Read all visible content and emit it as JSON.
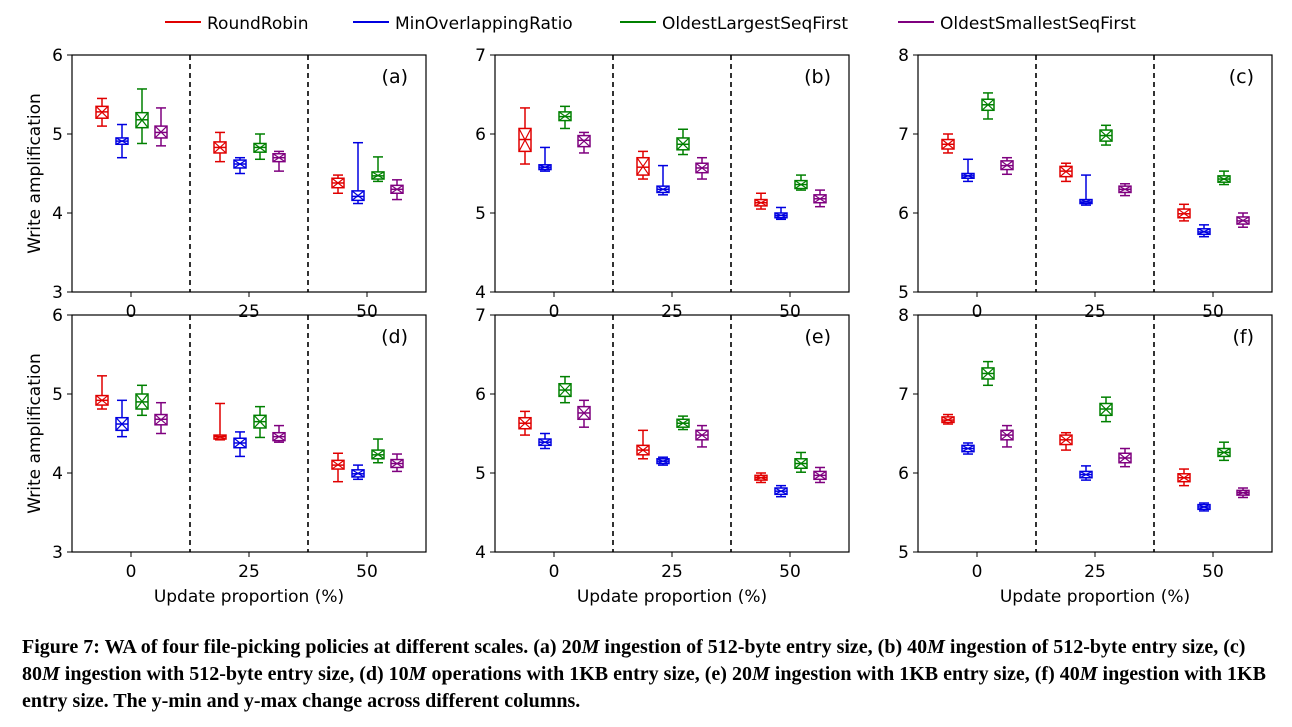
{
  "legend": [
    {
      "name": "RoundRobin",
      "color": "#e00000"
    },
    {
      "name": "MinOverlappingRatio",
      "color": "#0000e0"
    },
    {
      "name": "OldestLargestSeqFirst",
      "color": "#008000"
    },
    {
      "name": "OldestSmallestSeqFirst",
      "color": "#7f007f"
    }
  ],
  "caption": {
    "part1": "Figure 7: WA of four file-picking policies at different scales. (a) 20",
    "part2": "ingestion of 512-byte entry size, (b) 40",
    "part3": "ingestion of 512-byte entry size, (c) 80",
    "part4": "ingestion with 512-byte entry size, (d) 10",
    "part5": "operations with 1KB entry size, (e) 20",
    "part6": "ingestion with 1KB entry size, (f) 40",
    "part7": "ingestion with 1KB entry size. The y-min and y-max change across different columns.",
    "m": "M"
  },
  "chart_data": [
    {
      "type": "box",
      "panel": "(a)",
      "ylabel": "Write amplification",
      "xlabel": "",
      "ylim": [
        3,
        6
      ],
      "yticks": [
        3,
        4,
        5,
        6
      ],
      "categories": [
        "0",
        "25",
        "50"
      ],
      "series": [
        {
          "name": "RoundRobin",
          "boxes": [
            {
              "min": 5.1,
              "q1": 5.2,
              "median": 5.28,
              "q3": 5.35,
              "max": 5.45
            },
            {
              "min": 4.65,
              "q1": 4.76,
              "median": 4.83,
              "q3": 4.9,
              "max": 5.02
            },
            {
              "min": 4.25,
              "q1": 4.32,
              "median": 4.38,
              "q3": 4.44,
              "max": 4.48
            }
          ]
        },
        {
          "name": "MinOverlappingRatio",
          "boxes": [
            {
              "min": 4.7,
              "q1": 4.87,
              "median": 4.91,
              "q3": 4.95,
              "max": 5.12
            },
            {
              "min": 4.5,
              "q1": 4.57,
              "median": 4.62,
              "q3": 4.67,
              "max": 4.7
            },
            {
              "min": 4.12,
              "q1": 4.16,
              "median": 4.21,
              "q3": 4.28,
              "max": 4.89
            }
          ]
        },
        {
          "name": "OldestLargestSeqFirst",
          "boxes": [
            {
              "min": 4.88,
              "q1": 5.08,
              "median": 5.18,
              "q3": 5.27,
              "max": 5.57
            },
            {
              "min": 4.68,
              "q1": 4.77,
              "median": 4.83,
              "q3": 4.88,
              "max": 5.0
            },
            {
              "min": 4.4,
              "q1": 4.43,
              "median": 4.47,
              "q3": 4.52,
              "max": 4.71
            }
          ]
        },
        {
          "name": "OldestSmallestSeqFirst",
          "boxes": [
            {
              "min": 4.85,
              "q1": 4.95,
              "median": 5.02,
              "q3": 5.1,
              "max": 5.33
            },
            {
              "min": 4.53,
              "q1": 4.65,
              "median": 4.7,
              "q3": 4.75,
              "max": 4.78
            },
            {
              "min": 4.17,
              "q1": 4.25,
              "median": 4.3,
              "q3": 4.35,
              "max": 4.42
            }
          ]
        }
      ]
    },
    {
      "type": "box",
      "panel": "(b)",
      "ylabel": "",
      "xlabel": "",
      "ylim": [
        4,
        7
      ],
      "yticks": [
        4,
        5,
        6,
        7
      ],
      "categories": [
        "0",
        "25",
        "50"
      ],
      "series": [
        {
          "name": "RoundRobin",
          "boxes": [
            {
              "min": 5.62,
              "q1": 5.78,
              "median": 5.93,
              "q3": 6.07,
              "max": 6.33
            },
            {
              "min": 5.43,
              "q1": 5.48,
              "median": 5.58,
              "q3": 5.7,
              "max": 5.78
            },
            {
              "min": 5.05,
              "q1": 5.09,
              "median": 5.13,
              "q3": 5.17,
              "max": 5.25
            }
          ]
        },
        {
          "name": "MinOverlappingRatio",
          "boxes": [
            {
              "min": 5.53,
              "q1": 5.55,
              "median": 5.58,
              "q3": 5.61,
              "max": 5.83
            },
            {
              "min": 5.23,
              "q1": 5.26,
              "median": 5.3,
              "q3": 5.34,
              "max": 5.6
            },
            {
              "min": 4.92,
              "q1": 4.94,
              "median": 4.97,
              "q3": 5.0,
              "max": 5.07
            }
          ]
        },
        {
          "name": "OldestLargestSeqFirst",
          "boxes": [
            {
              "min": 6.07,
              "q1": 6.17,
              "median": 6.22,
              "q3": 6.28,
              "max": 6.35
            },
            {
              "min": 5.74,
              "q1": 5.8,
              "median": 5.87,
              "q3": 5.95,
              "max": 6.06
            },
            {
              "min": 5.29,
              "q1": 5.31,
              "median": 5.36,
              "q3": 5.41,
              "max": 5.48
            }
          ]
        },
        {
          "name": "OldestSmallestSeqFirst",
          "boxes": [
            {
              "min": 5.76,
              "q1": 5.84,
              "median": 5.92,
              "q3": 5.98,
              "max": 6.02
            },
            {
              "min": 5.43,
              "q1": 5.51,
              "median": 5.57,
              "q3": 5.63,
              "max": 5.7
            },
            {
              "min": 5.08,
              "q1": 5.13,
              "median": 5.18,
              "q3": 5.23,
              "max": 5.29
            }
          ]
        }
      ]
    },
    {
      "type": "box",
      "panel": "(c)",
      "ylabel": "",
      "xlabel": "",
      "ylim": [
        5,
        8
      ],
      "yticks": [
        5,
        6,
        7,
        8
      ],
      "categories": [
        "0",
        "25",
        "50"
      ],
      "series": [
        {
          "name": "RoundRobin",
          "boxes": [
            {
              "min": 6.76,
              "q1": 6.81,
              "median": 6.87,
              "q3": 6.93,
              "max": 7.0
            },
            {
              "min": 6.4,
              "q1": 6.46,
              "median": 6.53,
              "q3": 6.59,
              "max": 6.63
            },
            {
              "min": 5.9,
              "q1": 5.94,
              "median": 5.99,
              "q3": 6.05,
              "max": 6.11
            }
          ]
        },
        {
          "name": "MinOverlappingRatio",
          "boxes": [
            {
              "min": 6.4,
              "q1": 6.44,
              "median": 6.47,
              "q3": 6.5,
              "max": 6.68
            },
            {
              "min": 6.1,
              "q1": 6.12,
              "median": 6.14,
              "q3": 6.17,
              "max": 6.48
            },
            {
              "min": 5.7,
              "q1": 5.73,
              "median": 5.76,
              "q3": 5.8,
              "max": 5.85
            }
          ]
        },
        {
          "name": "OldestLargestSeqFirst",
          "boxes": [
            {
              "min": 7.19,
              "q1": 7.3,
              "median": 7.37,
              "q3": 7.44,
              "max": 7.52
            },
            {
              "min": 6.86,
              "q1": 6.91,
              "median": 6.98,
              "q3": 7.05,
              "max": 7.11
            },
            {
              "min": 6.36,
              "q1": 6.39,
              "median": 6.43,
              "q3": 6.47,
              "max": 6.53
            }
          ]
        },
        {
          "name": "OldestSmallestSeqFirst",
          "boxes": [
            {
              "min": 6.49,
              "q1": 6.55,
              "median": 6.6,
              "q3": 6.66,
              "max": 6.7
            },
            {
              "min": 6.22,
              "q1": 6.26,
              "median": 6.3,
              "q3": 6.34,
              "max": 6.37
            },
            {
              "min": 5.82,
              "q1": 5.86,
              "median": 5.9,
              "q3": 5.95,
              "max": 6.0
            }
          ]
        }
      ]
    },
    {
      "type": "box",
      "panel": "(d)",
      "ylabel": "Write amplification",
      "xlabel": "Update proportion (%)",
      "ylim": [
        3,
        6
      ],
      "yticks": [
        3,
        4,
        5,
        6
      ],
      "categories": [
        "0",
        "25",
        "50"
      ],
      "series": [
        {
          "name": "RoundRobin",
          "boxes": [
            {
              "min": 4.81,
              "q1": 4.86,
              "median": 4.92,
              "q3": 4.98,
              "max": 5.23
            },
            {
              "min": 4.42,
              "q1": 4.43,
              "median": 4.46,
              "q3": 4.48,
              "max": 4.88
            },
            {
              "min": 3.89,
              "q1": 4.05,
              "median": 4.1,
              "q3": 4.16,
              "max": 4.25
            }
          ]
        },
        {
          "name": "MinOverlappingRatio",
          "boxes": [
            {
              "min": 4.46,
              "q1": 4.54,
              "median": 4.62,
              "q3": 4.7,
              "max": 4.92
            },
            {
              "min": 4.21,
              "q1": 4.32,
              "median": 4.38,
              "q3": 4.44,
              "max": 4.52
            },
            {
              "min": 3.92,
              "q1": 3.95,
              "median": 3.99,
              "q3": 4.04,
              "max": 4.1
            }
          ]
        },
        {
          "name": "OldestLargestSeqFirst",
          "boxes": [
            {
              "min": 4.73,
              "q1": 4.81,
              "median": 4.9,
              "q3": 5.0,
              "max": 5.11
            },
            {
              "min": 4.45,
              "q1": 4.57,
              "median": 4.65,
              "q3": 4.73,
              "max": 4.84
            },
            {
              "min": 4.13,
              "q1": 4.18,
              "median": 4.23,
              "q3": 4.29,
              "max": 4.43
            }
          ]
        },
        {
          "name": "OldestSmallestSeqFirst",
          "boxes": [
            {
              "min": 4.5,
              "q1": 4.61,
              "median": 4.68,
              "q3": 4.74,
              "max": 4.89
            },
            {
              "min": 4.39,
              "q1": 4.41,
              "median": 4.46,
              "q3": 4.51,
              "max": 4.6
            },
            {
              "min": 4.02,
              "q1": 4.07,
              "median": 4.12,
              "q3": 4.17,
              "max": 4.24
            }
          ]
        }
      ]
    },
    {
      "type": "box",
      "panel": "(e)",
      "ylabel": "",
      "xlabel": "Update proportion (%)",
      "ylim": [
        4,
        7
      ],
      "yticks": [
        4,
        5,
        6,
        7
      ],
      "categories": [
        "0",
        "25",
        "50"
      ],
      "series": [
        {
          "name": "RoundRobin",
          "boxes": [
            {
              "min": 5.48,
              "q1": 5.56,
              "median": 5.63,
              "q3": 5.7,
              "max": 5.78
            },
            {
              "min": 5.18,
              "q1": 5.23,
              "median": 5.29,
              "q3": 5.35,
              "max": 5.54
            },
            {
              "min": 4.88,
              "q1": 4.91,
              "median": 4.94,
              "q3": 4.97,
              "max": 5.0
            }
          ]
        },
        {
          "name": "MinOverlappingRatio",
          "boxes": [
            {
              "min": 5.31,
              "q1": 5.35,
              "median": 5.39,
              "q3": 5.43,
              "max": 5.5
            },
            {
              "min": 5.1,
              "q1": 5.12,
              "median": 5.15,
              "q3": 5.18,
              "max": 5.2
            },
            {
              "min": 4.7,
              "q1": 4.73,
              "median": 4.77,
              "q3": 4.81,
              "max": 4.84
            }
          ]
        },
        {
          "name": "OldestLargestSeqFirst",
          "boxes": [
            {
              "min": 5.89,
              "q1": 5.97,
              "median": 6.05,
              "q3": 6.13,
              "max": 6.22
            },
            {
              "min": 5.55,
              "q1": 5.58,
              "median": 5.63,
              "q3": 5.68,
              "max": 5.72
            },
            {
              "min": 5.01,
              "q1": 5.06,
              "median": 5.12,
              "q3": 5.18,
              "max": 5.26
            }
          ]
        },
        {
          "name": "OldestSmallestSeqFirst",
          "boxes": [
            {
              "min": 5.58,
              "q1": 5.68,
              "median": 5.76,
              "q3": 5.84,
              "max": 5.92
            },
            {
              "min": 5.33,
              "q1": 5.42,
              "median": 5.48,
              "q3": 5.54,
              "max": 5.6
            },
            {
              "min": 4.88,
              "q1": 4.92,
              "median": 4.97,
              "q3": 5.02,
              "max": 5.07
            }
          ]
        }
      ]
    },
    {
      "type": "box",
      "panel": "(f)",
      "ylabel": "",
      "xlabel": "Update proportion (%)",
      "ylim": [
        5,
        8
      ],
      "yticks": [
        5,
        6,
        7,
        8
      ],
      "categories": [
        "0",
        "25",
        "50"
      ],
      "series": [
        {
          "name": "RoundRobin",
          "boxes": [
            {
              "min": 6.62,
              "q1": 6.64,
              "median": 6.67,
              "q3": 6.71,
              "max": 6.74
            },
            {
              "min": 6.29,
              "q1": 6.36,
              "median": 6.42,
              "q3": 6.48,
              "max": 6.51
            },
            {
              "min": 5.84,
              "q1": 5.89,
              "median": 5.94,
              "q3": 5.99,
              "max": 6.05
            }
          ]
        },
        {
          "name": "MinOverlappingRatio",
          "boxes": [
            {
              "min": 6.24,
              "q1": 6.27,
              "median": 6.31,
              "q3": 6.35,
              "max": 6.38
            },
            {
              "min": 5.91,
              "q1": 5.94,
              "median": 5.98,
              "q3": 6.02,
              "max": 6.09
            },
            {
              "min": 5.52,
              "q1": 5.54,
              "median": 5.57,
              "q3": 5.6,
              "max": 5.62
            }
          ]
        },
        {
          "name": "OldestLargestSeqFirst",
          "boxes": [
            {
              "min": 7.11,
              "q1": 7.19,
              "median": 7.26,
              "q3": 7.33,
              "max": 7.41
            },
            {
              "min": 6.65,
              "q1": 6.73,
              "median": 6.81,
              "q3": 6.88,
              "max": 6.96
            },
            {
              "min": 6.16,
              "q1": 6.21,
              "median": 6.26,
              "q3": 6.31,
              "max": 6.39
            }
          ]
        },
        {
          "name": "OldestSmallestSeqFirst",
          "boxes": [
            {
              "min": 6.33,
              "q1": 6.42,
              "median": 6.48,
              "q3": 6.54,
              "max": 6.6
            },
            {
              "min": 6.08,
              "q1": 6.13,
              "median": 6.19,
              "q3": 6.25,
              "max": 6.31
            },
            {
              "min": 5.69,
              "q1": 5.72,
              "median": 5.75,
              "q3": 5.78,
              "max": 5.81
            }
          ]
        }
      ]
    }
  ]
}
